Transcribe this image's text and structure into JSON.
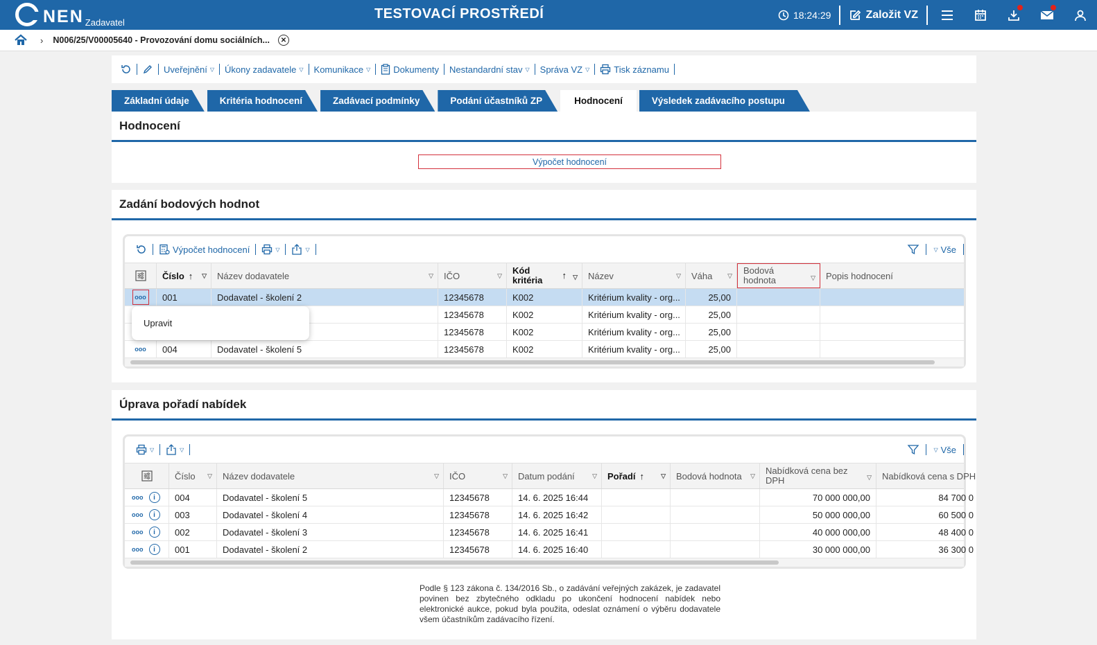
{
  "header": {
    "logo_text": "NEN",
    "role": "Zadavatel",
    "environment": "TESTOVACÍ PROSTŘEDÍ",
    "time": "18:24:29",
    "create_label": "Založit VZ"
  },
  "breadcrumb": {
    "text": "N006/25/V00005640 - Provozování domu sociálních..."
  },
  "actions": [
    {
      "label": "Uveřejnění",
      "dropdown": true
    },
    {
      "label": "Úkony zadavatele",
      "dropdown": true
    },
    {
      "label": "Komunikace",
      "dropdown": true
    },
    {
      "label": "Dokumenty",
      "dropdown": false
    },
    {
      "label": "Nestandardní stav",
      "dropdown": true
    },
    {
      "label": "Správa VZ",
      "dropdown": true
    },
    {
      "label": "Tisk záznamu",
      "dropdown": false
    }
  ],
  "tabs": [
    {
      "label": "Základní údaje",
      "active": false
    },
    {
      "label": "Kritéria hodnocení",
      "active": false
    },
    {
      "label": "Zadávací podmínky",
      "active": false
    },
    {
      "label": "Podání účastníků ZP",
      "active": false
    },
    {
      "label": "Hodnocení",
      "active": true
    },
    {
      "label": "Výsledek zadávacího postupu",
      "active": false
    }
  ],
  "hodnoceni": {
    "title": "Hodnocení",
    "calc_button": "Výpočet hodnocení"
  },
  "points": {
    "title": "Zadání bodových hodnot",
    "toolbar_calc": "Výpočet hodnocení",
    "filter_all": "Vše",
    "columns": [
      "Číslo",
      "Název dodavatele",
      "IČO",
      "Kód kritéria",
      "Název",
      "Váha",
      "Bodová hodnota",
      "Popis hodnocení"
    ],
    "rows": [
      {
        "cislo": "001",
        "nazev": "Dodavatel - školení 2",
        "ico": "12345678",
        "kod": "K002",
        "krit": "Kritérium kvality - org...",
        "vaha": "25,00",
        "body": "",
        "popis": ""
      },
      {
        "cislo": "",
        "nazev": "",
        "ico": "12345678",
        "kod": "K002",
        "krit": "Kritérium kvality - org...",
        "vaha": "25,00",
        "body": "",
        "popis": ""
      },
      {
        "cislo": "",
        "nazev": "",
        "ico": "12345678",
        "kod": "K002",
        "krit": "Kritérium kvality - org...",
        "vaha": "25,00",
        "body": "",
        "popis": ""
      },
      {
        "cislo": "004",
        "nazev": "Dodavatel - školení 5",
        "ico": "12345678",
        "kod": "K002",
        "krit": "Kritérium kvality - org...",
        "vaha": "25,00",
        "body": "",
        "popis": ""
      }
    ],
    "context_menu": [
      "Upravit"
    ]
  },
  "ranking": {
    "title": "Úprava pořadí nabídek",
    "filter_all": "Vše",
    "columns": [
      "Číslo",
      "Název dodavatele",
      "IČO",
      "Datum podání",
      "Pořadí",
      "Bodová hodnota",
      "Nabídková cena bez DPH",
      "Nabídková cena s DPH"
    ],
    "rows": [
      {
        "cislo": "004",
        "nazev": "Dodavatel - školení 5",
        "ico": "12345678",
        "datum": "14. 6. 2025 16:44",
        "poradi": "",
        "body": "",
        "cena_bez": "70 000 000,00",
        "cena_s": "84 700 0"
      },
      {
        "cislo": "003",
        "nazev": "Dodavatel - školení 4",
        "ico": "12345678",
        "datum": "14. 6. 2025 16:42",
        "poradi": "",
        "body": "",
        "cena_bez": "50 000 000,00",
        "cena_s": "60 500 0"
      },
      {
        "cislo": "002",
        "nazev": "Dodavatel - školení 3",
        "ico": "12345678",
        "datum": "14. 6. 2025 16:41",
        "poradi": "",
        "body": "",
        "cena_bez": "40 000 000,00",
        "cena_s": "48 400 0"
      },
      {
        "cislo": "001",
        "nazev": "Dodavatel - školení 2",
        "ico": "12345678",
        "datum": "14. 6. 2025 16:40",
        "poradi": "",
        "body": "",
        "cena_bez": "30 000 000,00",
        "cena_s": "36 300 0"
      }
    ]
  },
  "legal_text": "Podle § 123 zákona č. 134/2016 Sb., o zadávání veřejných zakázek, je zadavatel povinen bez zbytečného odkladu po ukončení hodnocení nabídek nebo elektronické aukce, pokud byla použita, odeslat oznámení o výběru dodavatele všem účastníkům zadávacího řízení.",
  "colors": {
    "primary": "#1f67a8",
    "highlight": "#d3303b",
    "selected_row": "#c5dcf2"
  }
}
